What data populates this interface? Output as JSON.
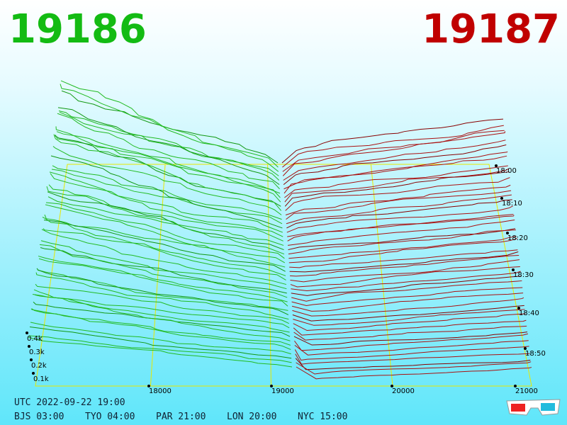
{
  "header": {
    "bid": "19186",
    "ask": "19187"
  },
  "price_axis": [
    "18000",
    "19000",
    "20000",
    "21000"
  ],
  "time_axis": [
    "18:00",
    "18:10",
    "18:20",
    "18:30",
    "18:40",
    "18:50"
  ],
  "depth_axis": [
    "0.4k",
    "0.3k",
    "0.2k",
    "0.1k"
  ],
  "footer": {
    "utc": "UTC 2022-09-22 19:00",
    "zones": [
      "BJS 03:00",
      "TYO 04:00",
      "PAR 21:00",
      "LON 20:00",
      "NYC 15:00"
    ]
  }
}
